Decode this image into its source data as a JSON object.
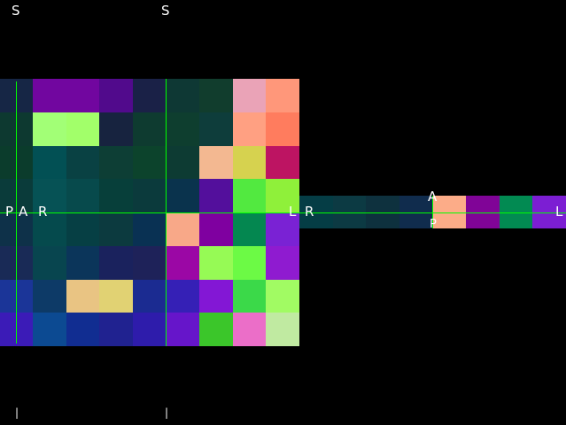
{
  "views": {
    "view_1": {
      "labels": {
        "top": "S",
        "left": "P",
        "right": "A",
        "bottom": "|"
      },
      "colors": [
        [
          "#162645",
          "#162645",
          "#71069f",
          "#71069f",
          "#510a8c",
          "#1a2147",
          "#0e3834",
          "#113d2d",
          "#eaa3b7",
          "#ff977a"
        ],
        [
          "#0d3930",
          "#0d3930",
          "#a2ff76",
          "#a2ff6a",
          "#17233f",
          "#0e3b30",
          "#0e3e2f",
          "#0e3d3b",
          "#ffa082",
          "#ff7c5e"
        ],
        [
          "#0b3c2c",
          "#0b3c2c",
          "#025054",
          "#094143",
          "#0d3e35",
          "#0c432c",
          "#0d3b33",
          "#f3b891",
          "#d6d24f",
          "#bd1462"
        ],
        [
          "#0a3b3a",
          "#0a3b3a",
          "#065255",
          "#074a4c",
          "#073f3a",
          "#0b3a3c",
          "#0a334d",
          "#530f9c",
          "#52e940",
          "#8ff03a"
        ],
        [
          "#0e3149",
          "#0e3149",
          "#054a4d",
          "#063f44",
          "#0c3a3f",
          "#093153",
          "#f8a888",
          "#7f00a0",
          "#048750",
          "#7a22d4"
        ],
        [
          "#192a56",
          "#192a56",
          "#08454f",
          "#0b355a",
          "#1a225d",
          "#1e2259",
          "#9b07a5",
          "#96fa55",
          "#6cfa45",
          "#8f1bd0"
        ],
        [
          "#1b3598",
          "#1b3598",
          "#0d3a67",
          "#e9c483",
          "#e1d273",
          "#1b2b91",
          "#3520b6",
          "#8317d5",
          "#3bd949",
          "#a1fb63"
        ],
        [
          "#3b1bb7",
          "#3b1bb7",
          "#0c4a92",
          "#112d91",
          "#202290",
          "#2e1cab",
          "#6615ca",
          "#3bc62a",
          "#eb6ec8",
          "#c0eaa1"
        ]
      ]
    },
    "view_2": {
      "labels": {
        "top": "S",
        "left": "R",
        "right": "L",
        "bottom": "|"
      }
    },
    "view_3": {
      "labels": {
        "top": "A",
        "left": "R",
        "right": "L",
        "bottom": "P"
      },
      "colors": [
        [
          "#053d45",
          "#0c3a43",
          "#0e313e",
          "#102c4d",
          "#fcac88",
          "#800497",
          "#028a52",
          "#7c1ed3"
        ]
      ]
    }
  },
  "crosshair": {
    "color": "#00ff00"
  }
}
